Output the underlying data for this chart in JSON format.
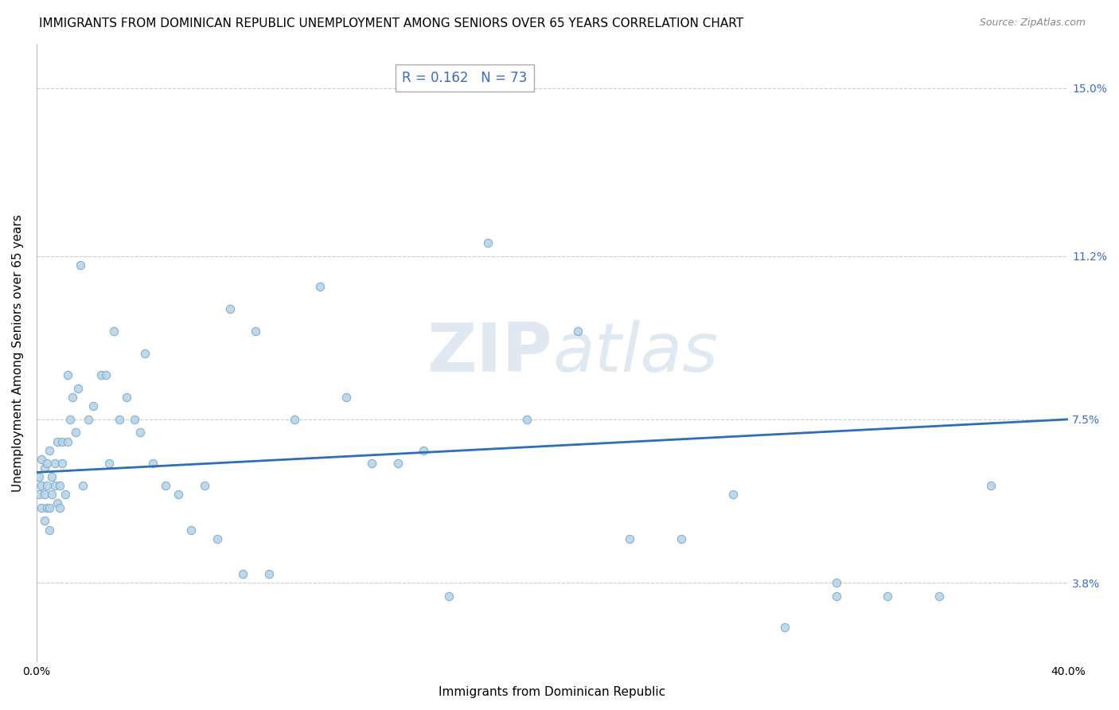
{
  "title": "IMMIGRANTS FROM DOMINICAN REPUBLIC UNEMPLOYMENT AMONG SENIORS OVER 65 YEARS CORRELATION CHART",
  "source": "Source: ZipAtlas.com",
  "xlabel": "Immigrants from Dominican Republic",
  "ylabel": "Unemployment Among Seniors over 65 years",
  "xlim": [
    0.0,
    0.4
  ],
  "ylim": [
    0.02,
    0.16
  ],
  "xticklabels": [
    "0.0%",
    "40.0%"
  ],
  "ytick_positions": [
    0.038,
    0.075,
    0.112,
    0.15
  ],
  "ytick_labels": [
    "3.8%",
    "7.5%",
    "11.2%",
    "15.0%"
  ],
  "scatter_color": "#b8d4e8",
  "scatter_edge_color": "#7aaacf",
  "line_color": "#2f6eb5",
  "dot_size": 55,
  "background_color": "#ffffff",
  "grid_color": "#cccccc",
  "title_fontsize": 11,
  "axis_label_fontsize": 11,
  "tick_fontsize": 10,
  "stats_fontsize": 12,
  "scatter_x": [
    0.001,
    0.001,
    0.002,
    0.002,
    0.002,
    0.003,
    0.003,
    0.003,
    0.004,
    0.004,
    0.004,
    0.005,
    0.005,
    0.005,
    0.006,
    0.006,
    0.007,
    0.007,
    0.008,
    0.008,
    0.009,
    0.009,
    0.01,
    0.01,
    0.011,
    0.012,
    0.012,
    0.013,
    0.014,
    0.015,
    0.016,
    0.018,
    0.02,
    0.022,
    0.025,
    0.027,
    0.03,
    0.032,
    0.035,
    0.038,
    0.04,
    0.045,
    0.05,
    0.055,
    0.06,
    0.065,
    0.07,
    0.08,
    0.09,
    0.1,
    0.11,
    0.12,
    0.13,
    0.14,
    0.15,
    0.16,
    0.175,
    0.19,
    0.21,
    0.23,
    0.25,
    0.27,
    0.29,
    0.31,
    0.33,
    0.35,
    0.37,
    0.017,
    0.028,
    0.042,
    0.075,
    0.085,
    0.31
  ],
  "scatter_y": [
    0.058,
    0.062,
    0.055,
    0.06,
    0.066,
    0.052,
    0.058,
    0.064,
    0.055,
    0.06,
    0.065,
    0.05,
    0.055,
    0.068,
    0.058,
    0.062,
    0.06,
    0.065,
    0.056,
    0.07,
    0.055,
    0.06,
    0.065,
    0.07,
    0.058,
    0.085,
    0.07,
    0.075,
    0.08,
    0.072,
    0.082,
    0.06,
    0.075,
    0.078,
    0.085,
    0.085,
    0.095,
    0.075,
    0.08,
    0.075,
    0.072,
    0.065,
    0.06,
    0.058,
    0.05,
    0.06,
    0.048,
    0.04,
    0.04,
    0.075,
    0.105,
    0.08,
    0.065,
    0.065,
    0.068,
    0.035,
    0.115,
    0.075,
    0.095,
    0.048,
    0.048,
    0.058,
    0.028,
    0.038,
    0.035,
    0.035,
    0.06,
    0.11,
    0.065,
    0.09,
    0.1,
    0.095,
    0.035
  ]
}
